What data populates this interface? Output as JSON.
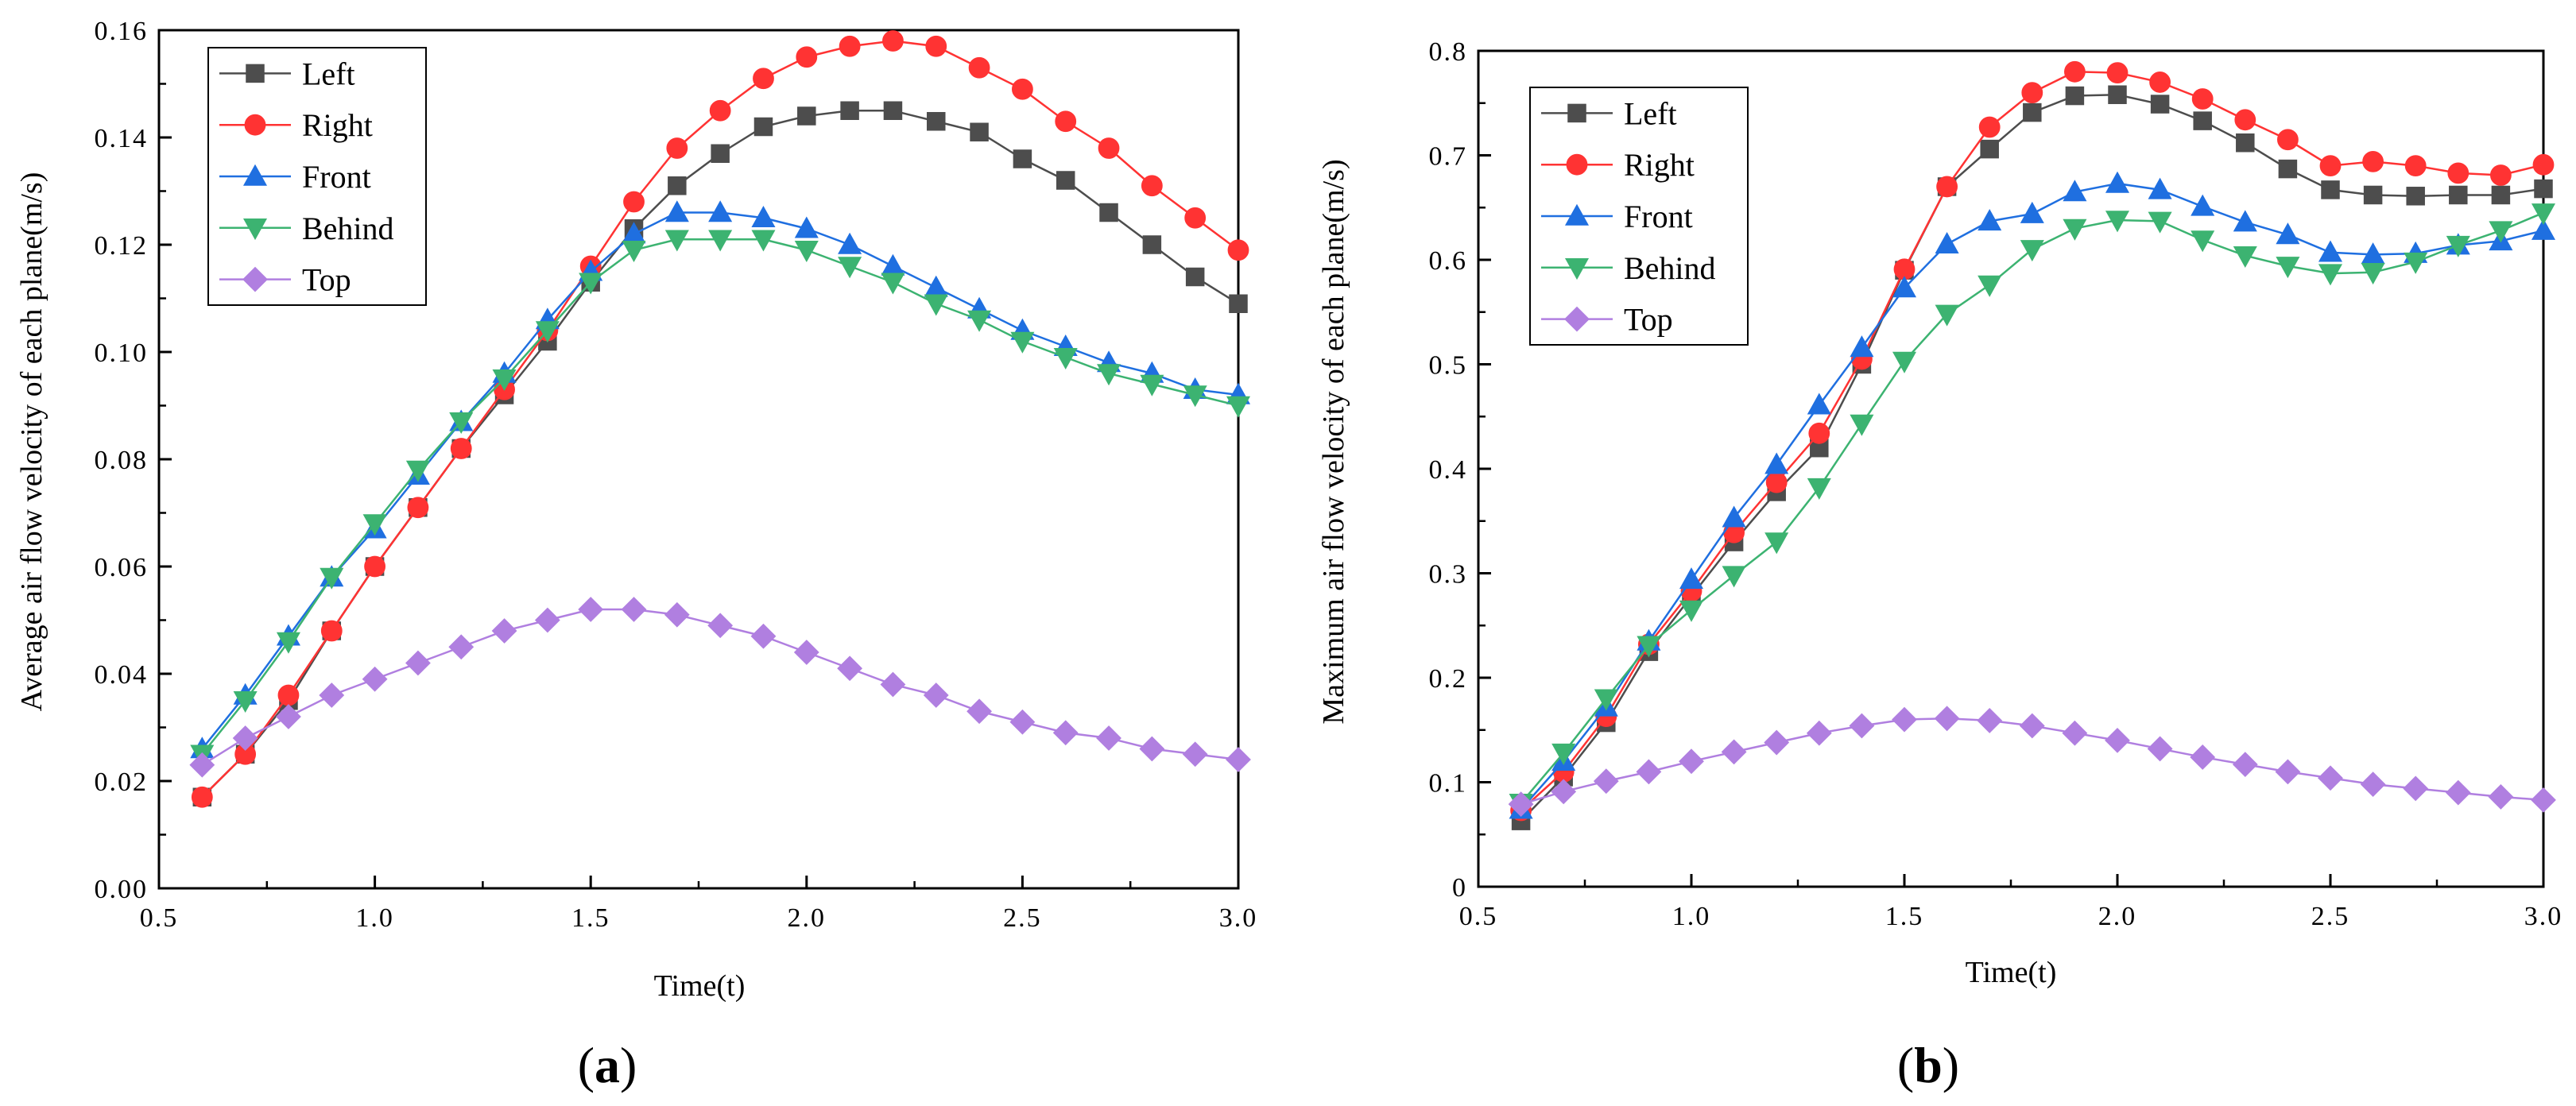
{
  "chart_data": [
    {
      "panel": "a",
      "type": "line",
      "panel_label": "(a)",
      "panel_label_letter": "a",
      "xlabel": "Time(t)",
      "ylabel": "Average air flow velocity of each plane(m/s)",
      "xlim": [
        0.5,
        3.0
      ],
      "ylim": [
        0.0,
        0.16
      ],
      "xticks": [
        0.5,
        1.0,
        1.5,
        2.0,
        2.5,
        3.0
      ],
      "xtick_labels": [
        "0.5",
        "1.0",
        "1.5",
        "2.0",
        "2.5",
        "3.0"
      ],
      "yticks": [
        0.0,
        0.02,
        0.04,
        0.06,
        0.08,
        0.1,
        0.12,
        0.14,
        0.16
      ],
      "ytick_labels": [
        "0.00",
        "0.02",
        "0.04",
        "0.06",
        "0.08",
        "0.10",
        "0.12",
        "0.14",
        "0.16"
      ],
      "legend_position": "top-left",
      "x": [
        0.6,
        0.7,
        0.8,
        0.9,
        1.0,
        1.1,
        1.2,
        1.3,
        1.4,
        1.5,
        1.6,
        1.7,
        1.8,
        1.9,
        2.0,
        2.1,
        2.2,
        2.3,
        2.4,
        2.5,
        2.6,
        2.7,
        2.8,
        2.9,
        3.0
      ],
      "series": [
        {
          "name": "Left",
          "color": "#4d4d4d",
          "marker": "square",
          "values": [
            0.017,
            0.025,
            0.035,
            0.048,
            0.06,
            0.071,
            0.082,
            0.092,
            0.102,
            0.113,
            0.123,
            0.131,
            0.137,
            0.142,
            0.144,
            0.145,
            0.145,
            0.143,
            0.141,
            0.136,
            0.132,
            0.126,
            0.12,
            0.114,
            0.109
          ]
        },
        {
          "name": "Right",
          "color": "#ff3333",
          "marker": "circle",
          "values": [
            0.017,
            0.025,
            0.036,
            0.048,
            0.06,
            0.071,
            0.082,
            0.093,
            0.104,
            0.116,
            0.128,
            0.138,
            0.145,
            0.151,
            0.155,
            0.157,
            0.158,
            0.157,
            0.153,
            0.149,
            0.143,
            0.138,
            0.131,
            0.125,
            0.119
          ]
        },
        {
          "name": "Front",
          "color": "#1f6fe0",
          "marker": "triangle-up",
          "values": [
            0.026,
            0.036,
            0.047,
            0.058,
            0.067,
            0.077,
            0.087,
            0.096,
            0.106,
            0.115,
            0.122,
            0.126,
            0.126,
            0.125,
            0.123,
            0.12,
            0.116,
            0.112,
            0.108,
            0.104,
            0.101,
            0.098,
            0.096,
            0.093,
            0.092
          ]
        },
        {
          "name": "Behind",
          "color": "#3cb371",
          "marker": "triangle-down",
          "values": [
            0.025,
            0.035,
            0.046,
            0.058,
            0.068,
            0.078,
            0.087,
            0.095,
            0.104,
            0.113,
            0.119,
            0.121,
            0.121,
            0.121,
            0.119,
            0.116,
            0.113,
            0.109,
            0.106,
            0.102,
            0.099,
            0.096,
            0.094,
            0.092,
            0.09
          ]
        },
        {
          "name": "Top",
          "color": "#b07fe0",
          "marker": "diamond",
          "values": [
            0.023,
            0.028,
            0.032,
            0.036,
            0.039,
            0.042,
            0.045,
            0.048,
            0.05,
            0.052,
            0.052,
            0.051,
            0.049,
            0.047,
            0.044,
            0.041,
            0.038,
            0.036,
            0.033,
            0.031,
            0.029,
            0.028,
            0.026,
            0.025,
            0.024
          ]
        }
      ]
    },
    {
      "panel": "b",
      "type": "line",
      "panel_label": "(b)",
      "panel_label_letter": "b",
      "xlabel": "Time(t)",
      "ylabel": "Maximum air flow velocity of each plane(m/s)",
      "xlim": [
        0.5,
        3.0
      ],
      "ylim": [
        0.0,
        0.8
      ],
      "xticks": [
        0.5,
        1.0,
        1.5,
        2.0,
        2.5,
        3.0
      ],
      "xtick_labels": [
        "0.5",
        "1.0",
        "1.5",
        "2.0",
        "2.5",
        "3.0"
      ],
      "yticks": [
        0.0,
        0.1,
        0.2,
        0.3,
        0.4,
        0.5,
        0.6,
        0.7,
        0.8
      ],
      "ytick_labels": [
        "0",
        "0.1",
        "0.2",
        "0.3",
        "0.4",
        "0.5",
        "0.6",
        "0.7",
        "0.8"
      ],
      "legend_position": "top-left",
      "x": [
        0.6,
        0.7,
        0.8,
        0.9,
        1.0,
        1.1,
        1.2,
        1.3,
        1.4,
        1.5,
        1.6,
        1.7,
        1.8,
        1.9,
        2.0,
        2.1,
        2.2,
        2.3,
        2.4,
        2.5,
        2.6,
        2.7,
        2.8,
        2.9,
        3.0
      ],
      "series": [
        {
          "name": "Left",
          "color": "#4d4d4d",
          "marker": "square",
          "values": [
            0.063,
            0.105,
            0.157,
            0.225,
            0.278,
            0.33,
            0.378,
            0.42,
            0.5,
            0.59,
            0.67,
            0.706,
            0.741,
            0.757,
            0.758,
            0.749,
            0.733,
            0.712,
            0.687,
            0.667,
            0.662,
            0.661,
            0.662,
            0.662,
            0.668
          ]
        },
        {
          "name": "Right",
          "color": "#ff3333",
          "marker": "circle",
          "values": [
            0.073,
            0.11,
            0.163,
            0.232,
            0.283,
            0.339,
            0.387,
            0.434,
            0.505,
            0.591,
            0.67,
            0.727,
            0.76,
            0.78,
            0.779,
            0.77,
            0.754,
            0.734,
            0.715,
            0.69,
            0.694,
            0.69,
            0.683,
            0.681,
            0.691
          ]
        },
        {
          "name": "Front",
          "color": "#1f6fe0",
          "marker": "triangle-up",
          "values": [
            0.074,
            0.12,
            0.172,
            0.235,
            0.294,
            0.353,
            0.404,
            0.461,
            0.516,
            0.573,
            0.615,
            0.637,
            0.644,
            0.665,
            0.673,
            0.667,
            0.651,
            0.636,
            0.624,
            0.607,
            0.605,
            0.606,
            0.614,
            0.618,
            0.628
          ]
        },
        {
          "name": "Behind",
          "color": "#3cb371",
          "marker": "triangle-down",
          "values": [
            0.08,
            0.128,
            0.18,
            0.231,
            0.265,
            0.298,
            0.33,
            0.382,
            0.443,
            0.503,
            0.548,
            0.576,
            0.61,
            0.63,
            0.638,
            0.637,
            0.619,
            0.604,
            0.594,
            0.587,
            0.588,
            0.598,
            0.614,
            0.628,
            0.645
          ]
        },
        {
          "name": "Top",
          "color": "#b07fe0",
          "marker": "diamond",
          "values": [
            0.079,
            0.091,
            0.101,
            0.11,
            0.12,
            0.129,
            0.138,
            0.147,
            0.154,
            0.16,
            0.161,
            0.159,
            0.154,
            0.147,
            0.14,
            0.132,
            0.124,
            0.117,
            0.11,
            0.104,
            0.098,
            0.094,
            0.09,
            0.086,
            0.083
          ]
        }
      ]
    }
  ]
}
